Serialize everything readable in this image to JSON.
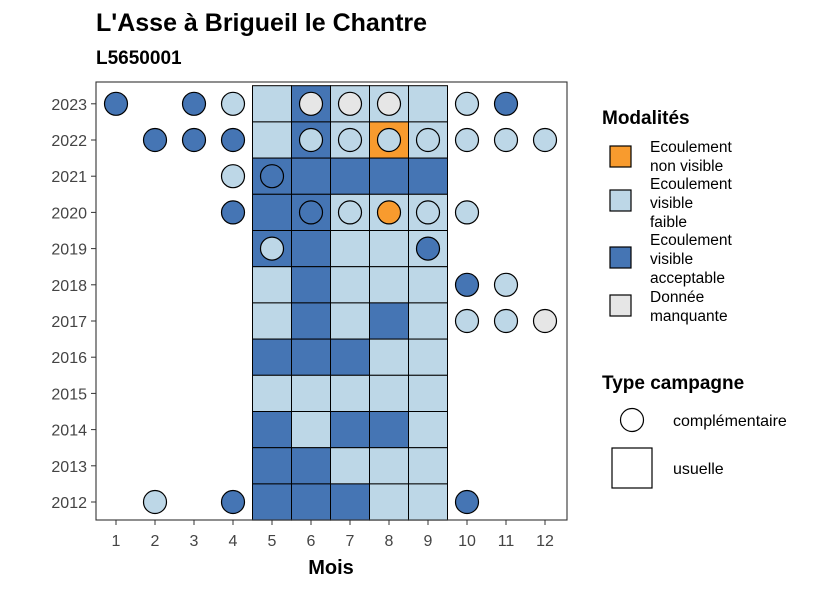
{
  "chart_data": {
    "type": "heatmap",
    "title": "L'Asse à Brigueil le Chantre",
    "subtitle": "L5650001",
    "xlabel": "Mois",
    "ylabel": "",
    "x": [
      1,
      2,
      3,
      4,
      5,
      6,
      7,
      8,
      9,
      10,
      11,
      12
    ],
    "years": [
      2012,
      2013,
      2014,
      2015,
      2016,
      2017,
      2018,
      2019,
      2020,
      2021,
      2022,
      2023
    ],
    "legend_modalites": {
      "title": "Modalités",
      "entries": [
        {
          "key": "nv",
          "label_lines": [
            "Ecoulement",
            "non visible"
          ],
          "color": "#F89B2E"
        },
        {
          "key": "vf",
          "label_lines": [
            "Ecoulement",
            "visible",
            "faible"
          ],
          "color": "#BDD7E7"
        },
        {
          "key": "va",
          "label_lines": [
            "Ecoulement",
            "visible",
            "acceptable"
          ],
          "color": "#4575B4"
        },
        {
          "key": "dm",
          "label_lines": [
            "Donnée",
            "manquante"
          ],
          "color": "#E6E6E6"
        }
      ]
    },
    "legend_campagne": {
      "title": "Type campagne",
      "entries": [
        {
          "key": "comp",
          "label": "complémentaire",
          "shape": "circle"
        },
        {
          "key": "usu",
          "label": "usuelle",
          "shape": "square"
        }
      ]
    },
    "usuelle": [
      {
        "year": 2023,
        "months": {
          "5": "vf",
          "6": "va",
          "7": "vf",
          "8": "vf",
          "9": "vf"
        }
      },
      {
        "year": 2022,
        "months": {
          "5": "vf",
          "6": "va",
          "7": "vf",
          "8": "nv",
          "9": "vf"
        }
      },
      {
        "year": 2021,
        "months": {
          "5": "va",
          "6": "va",
          "7": "va",
          "8": "va",
          "9": "va"
        }
      },
      {
        "year": 2020,
        "months": {
          "5": "va",
          "6": "va",
          "7": "vf",
          "8": "vf",
          "9": "vf"
        }
      },
      {
        "year": 2019,
        "months": {
          "5": "va",
          "6": "va",
          "7": "vf",
          "8": "vf",
          "9": "vf"
        }
      },
      {
        "year": 2018,
        "months": {
          "5": "vf",
          "6": "va",
          "7": "vf",
          "8": "vf",
          "9": "vf"
        }
      },
      {
        "year": 2017,
        "months": {
          "5": "vf",
          "6": "va",
          "7": "vf",
          "8": "va",
          "9": "vf"
        }
      },
      {
        "year": 2016,
        "months": {
          "5": "va",
          "6": "va",
          "7": "va",
          "8": "vf",
          "9": "vf"
        }
      },
      {
        "year": 2015,
        "months": {
          "5": "vf",
          "6": "vf",
          "7": "vf",
          "8": "vf",
          "9": "vf"
        }
      },
      {
        "year": 2014,
        "months": {
          "5": "va",
          "6": "vf",
          "7": "va",
          "8": "va",
          "9": "vf"
        }
      },
      {
        "year": 2013,
        "months": {
          "5": "va",
          "6": "va",
          "7": "vf",
          "8": "vf",
          "9": "vf"
        }
      },
      {
        "year": 2012,
        "months": {
          "5": "va",
          "6": "va",
          "7": "va",
          "8": "vf",
          "9": "vf"
        }
      }
    ],
    "complementaire": [
      {
        "year": 2023,
        "month": 1,
        "m": "va"
      },
      {
        "year": 2023,
        "month": 3,
        "m": "va"
      },
      {
        "year": 2023,
        "month": 4,
        "m": "vf"
      },
      {
        "year": 2023,
        "month": 6,
        "m": "dm"
      },
      {
        "year": 2023,
        "month": 7,
        "m": "dm"
      },
      {
        "year": 2023,
        "month": 8,
        "m": "dm"
      },
      {
        "year": 2023,
        "month": 10,
        "m": "vf"
      },
      {
        "year": 2023,
        "month": 11,
        "m": "va"
      },
      {
        "year": 2022,
        "month": 2,
        "m": "va"
      },
      {
        "year": 2022,
        "month": 3,
        "m": "va"
      },
      {
        "year": 2022,
        "month": 4,
        "m": "va"
      },
      {
        "year": 2022,
        "month": 6,
        "m": "vf"
      },
      {
        "year": 2022,
        "month": 7,
        "m": "vf"
      },
      {
        "year": 2022,
        "month": 8,
        "m": "vf"
      },
      {
        "year": 2022,
        "month": 9,
        "m": "vf"
      },
      {
        "year": 2022,
        "month": 10,
        "m": "vf"
      },
      {
        "year": 2022,
        "month": 11,
        "m": "vf"
      },
      {
        "year": 2022,
        "month": 12,
        "m": "vf"
      },
      {
        "year": 2021,
        "month": 4,
        "m": "vf"
      },
      {
        "year": 2021,
        "month": 5,
        "m": "va"
      },
      {
        "year": 2020,
        "month": 4,
        "m": "va"
      },
      {
        "year": 2020,
        "month": 6,
        "m": "va"
      },
      {
        "year": 2020,
        "month": 7,
        "m": "vf"
      },
      {
        "year": 2020,
        "month": 8,
        "m": "nv"
      },
      {
        "year": 2020,
        "month": 9,
        "m": "vf"
      },
      {
        "year": 2020,
        "month": 10,
        "m": "vf"
      },
      {
        "year": 2019,
        "month": 5,
        "m": "vf"
      },
      {
        "year": 2019,
        "month": 9,
        "m": "va"
      },
      {
        "year": 2018,
        "month": 10,
        "m": "va"
      },
      {
        "year": 2018,
        "month": 11,
        "m": "vf"
      },
      {
        "year": 2017,
        "month": 10,
        "m": "vf"
      },
      {
        "year": 2017,
        "month": 11,
        "m": "vf"
      },
      {
        "year": 2017,
        "month": 12,
        "m": "dm"
      },
      {
        "year": 2012,
        "month": 2,
        "m": "vf"
      },
      {
        "year": 2012,
        "month": 4,
        "m": "va"
      },
      {
        "year": 2012,
        "month": 10,
        "m": "va"
      }
    ]
  }
}
